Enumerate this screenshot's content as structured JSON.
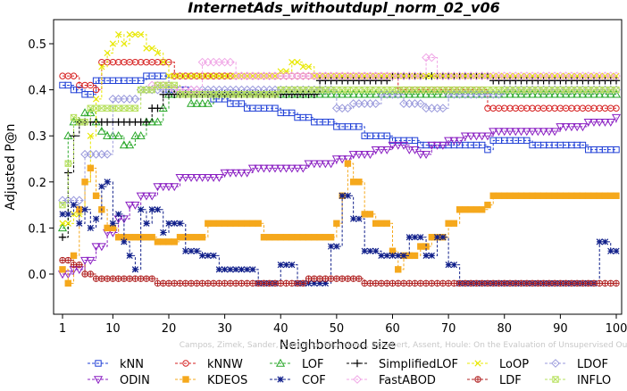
{
  "chart_data": {
    "type": "line",
    "title": "InternetAds_withoutdupl_norm_02_v06",
    "xlabel": "Neighborhood size",
    "ylabel": "Adjusted P@n",
    "xlim": [
      1,
      100
    ],
    "ylim": [
      -0.04,
      0.55
    ],
    "x_ticks": [
      1,
      10,
      20,
      30,
      40,
      50,
      60,
      70,
      80,
      90,
      100
    ],
    "y_ticks": [
      0.0,
      0.1,
      0.2,
      0.3,
      0.4,
      0.5
    ],
    "x_tick_labels": [
      "1",
      "10",
      "20",
      "30",
      "40",
      "50",
      "60",
      "70",
      "80",
      "90",
      "100"
    ],
    "y_tick_labels": [
      "0.0",
      "0.1",
      "0.2",
      "0.3",
      "0.4",
      "0.5"
    ],
    "grid": false,
    "legend_position": "bottom",
    "watermark": "Campos, Zimek, Sander, Campello, Micenková, Schubert, Assent, Houle: On the Evaluation of Unsupervised Outlier Detection. DAMI, 2015.",
    "series": [
      {
        "name": "kNN",
        "color": "#1f3fd6",
        "marker": "square",
        "points": [
          [
            1,
            0.41
          ],
          [
            3,
            0.4
          ],
          [
            5,
            0.39
          ],
          [
            7,
            0.42
          ],
          [
            10,
            0.42
          ],
          [
            13,
            0.42
          ],
          [
            16,
            0.43
          ],
          [
            19,
            0.43
          ],
          [
            20,
            0.4
          ],
          [
            24,
            0.39
          ],
          [
            28,
            0.38
          ],
          [
            31,
            0.37
          ],
          [
            34,
            0.36
          ],
          [
            37,
            0.36
          ],
          [
            40,
            0.35
          ],
          [
            43,
            0.34
          ],
          [
            46,
            0.33
          ],
          [
            50,
            0.32
          ],
          [
            55,
            0.3
          ],
          [
            60,
            0.29
          ],
          [
            65,
            0.28
          ],
          [
            70,
            0.28
          ],
          [
            77,
            0.27
          ],
          [
            78,
            0.29
          ],
          [
            85,
            0.28
          ],
          [
            90,
            0.28
          ],
          [
            95,
            0.27
          ],
          [
            100,
            0.27
          ]
        ]
      },
      {
        "name": "kNNW",
        "color": "#d62020",
        "marker": "circle",
        "points": [
          [
            1,
            0.43
          ],
          [
            4,
            0.41
          ],
          [
            7,
            0.4
          ],
          [
            8,
            0.46
          ],
          [
            20,
            0.46
          ],
          [
            21,
            0.43
          ],
          [
            40,
            0.43
          ],
          [
            55,
            0.43
          ],
          [
            60,
            0.43
          ],
          [
            61,
            0.4
          ],
          [
            70,
            0.4
          ],
          [
            76,
            0.4
          ],
          [
            77,
            0.36
          ],
          [
            90,
            0.36
          ],
          [
            100,
            0.36
          ]
        ]
      },
      {
        "name": "LOF",
        "color": "#2aa82a",
        "marker": "triangle",
        "points": [
          [
            1,
            0.1
          ],
          [
            2,
            0.3
          ],
          [
            3,
            0.33
          ],
          [
            5,
            0.35
          ],
          [
            7,
            0.33
          ],
          [
            8,
            0.31
          ],
          [
            9,
            0.3
          ],
          [
            10,
            0.3
          ],
          [
            11,
            0.3
          ],
          [
            12,
            0.28
          ],
          [
            13,
            0.28
          ],
          [
            14,
            0.3
          ],
          [
            15,
            0.3
          ],
          [
            16,
            0.33
          ],
          [
            17,
            0.33
          ],
          [
            18,
            0.33
          ],
          [
            19,
            0.36
          ],
          [
            20,
            0.39
          ],
          [
            22,
            0.39
          ],
          [
            24,
            0.37
          ],
          [
            26,
            0.37
          ],
          [
            28,
            0.39
          ],
          [
            40,
            0.39
          ],
          [
            50,
            0.39
          ],
          [
            60,
            0.39
          ],
          [
            70,
            0.39
          ],
          [
            80,
            0.39
          ],
          [
            90,
            0.39
          ],
          [
            100,
            0.39
          ]
        ]
      },
      {
        "name": "SimplifiedLOF",
        "color": "#000000",
        "marker": "plus",
        "points": [
          [
            1,
            0.08
          ],
          [
            2,
            0.22
          ],
          [
            3,
            0.3
          ],
          [
            4,
            0.33
          ],
          [
            10,
            0.33
          ],
          [
            16,
            0.33
          ],
          [
            17,
            0.36
          ],
          [
            19,
            0.39
          ],
          [
            25,
            0.39
          ],
          [
            35,
            0.39
          ],
          [
            46,
            0.39
          ],
          [
            47,
            0.42
          ],
          [
            60,
            0.43
          ],
          [
            77,
            0.43
          ],
          [
            78,
            0.42
          ],
          [
            90,
            0.42
          ],
          [
            100,
            0.42
          ]
        ]
      },
      {
        "name": "LoOP",
        "color": "#e8e800",
        "marker": "x",
        "points": [
          [
            1,
            0.11
          ],
          [
            3,
            0.13
          ],
          [
            5,
            0.2
          ],
          [
            6,
            0.3
          ],
          [
            7,
            0.38
          ],
          [
            8,
            0.45
          ],
          [
            9,
            0.48
          ],
          [
            10,
            0.5
          ],
          [
            11,
            0.52
          ],
          [
            12,
            0.5
          ],
          [
            13,
            0.52
          ],
          [
            16,
            0.49
          ],
          [
            18,
            0.48
          ],
          [
            19,
            0.46
          ],
          [
            20,
            0.43
          ],
          [
            40,
            0.44
          ],
          [
            42,
            0.46
          ],
          [
            44,
            0.45
          ],
          [
            46,
            0.43
          ],
          [
            60,
            0.43
          ],
          [
            70,
            0.43
          ],
          [
            80,
            0.43
          ],
          [
            100,
            0.43
          ]
        ]
      },
      {
        "name": "LDOF",
        "color": "#9a9adc",
        "marker": "diamond",
        "points": [
          [
            1,
            0.16
          ],
          [
            5,
            0.26
          ],
          [
            10,
            0.38
          ],
          [
            15,
            0.4
          ],
          [
            20,
            0.4
          ],
          [
            30,
            0.4
          ],
          [
            45,
            0.4
          ],
          [
            50,
            0.36
          ],
          [
            53,
            0.37
          ],
          [
            58,
            0.39
          ],
          [
            62,
            0.37
          ],
          [
            66,
            0.36
          ],
          [
            70,
            0.39
          ],
          [
            80,
            0.4
          ],
          [
            90,
            0.4
          ],
          [
            100,
            0.4
          ]
        ]
      },
      {
        "name": "ODIN",
        "color": "#8a1fc2",
        "marker": "triangle-down",
        "points": [
          [
            1,
            0.0
          ],
          [
            3,
            0.01
          ],
          [
            5,
            0.03
          ],
          [
            7,
            0.06
          ],
          [
            9,
            0.09
          ],
          [
            11,
            0.12
          ],
          [
            13,
            0.15
          ],
          [
            15,
            0.17
          ],
          [
            18,
            0.19
          ],
          [
            22,
            0.21
          ],
          [
            26,
            0.21
          ],
          [
            30,
            0.22
          ],
          [
            35,
            0.23
          ],
          [
            40,
            0.23
          ],
          [
            45,
            0.24
          ],
          [
            50,
            0.25
          ],
          [
            53,
            0.26
          ],
          [
            57,
            0.27
          ],
          [
            60,
            0.28
          ],
          [
            63,
            0.27
          ],
          [
            65,
            0.26
          ],
          [
            67,
            0.28
          ],
          [
            70,
            0.29
          ],
          [
            73,
            0.3
          ],
          [
            78,
            0.31
          ],
          [
            85,
            0.31
          ],
          [
            90,
            0.32
          ],
          [
            95,
            0.33
          ],
          [
            100,
            0.34
          ]
        ]
      },
      {
        "name": "KDEOS",
        "color": "#f5a81c",
        "marker": "square-filled",
        "points": [
          [
            1,
            0.01
          ],
          [
            2,
            -0.02
          ],
          [
            3,
            0.04
          ],
          [
            4,
            0.14
          ],
          [
            5,
            0.2
          ],
          [
            6,
            0.23
          ],
          [
            7,
            0.17
          ],
          [
            8,
            0.14
          ],
          [
            9,
            0.1
          ],
          [
            10,
            0.1
          ],
          [
            11,
            0.08
          ],
          [
            16,
            0.08
          ],
          [
            18,
            0.07
          ],
          [
            22,
            0.08
          ],
          [
            26,
            0.08
          ],
          [
            27,
            0.11
          ],
          [
            32,
            0.11
          ],
          [
            37,
            0.08
          ],
          [
            45,
            0.08
          ],
          [
            49,
            0.08
          ],
          [
            50,
            0.11
          ],
          [
            51,
            0.17
          ],
          [
            52,
            0.24
          ],
          [
            53,
            0.2
          ],
          [
            55,
            0.13
          ],
          [
            57,
            0.11
          ],
          [
            60,
            0.05
          ],
          [
            61,
            0.01
          ],
          [
            62,
            0.04
          ],
          [
            65,
            0.06
          ],
          [
            67,
            0.08
          ],
          [
            70,
            0.11
          ],
          [
            72,
            0.14
          ],
          [
            75,
            0.14
          ],
          [
            77,
            0.15
          ],
          [
            78,
            0.17
          ],
          [
            80,
            0.17
          ],
          [
            90,
            0.17
          ],
          [
            100,
            0.17
          ]
        ]
      },
      {
        "name": "COF",
        "color": "#101f8a",
        "marker": "star",
        "points": [
          [
            1,
            0.13
          ],
          [
            3,
            0.15
          ],
          [
            4,
            0.11
          ],
          [
            5,
            0.14
          ],
          [
            6,
            0.1
          ],
          [
            7,
            0.12
          ],
          [
            8,
            0.19
          ],
          [
            9,
            0.2
          ],
          [
            10,
            0.11
          ],
          [
            11,
            0.13
          ],
          [
            12,
            0.07
          ],
          [
            13,
            0.04
          ],
          [
            14,
            0.01
          ],
          [
            15,
            0.14
          ],
          [
            16,
            0.11
          ],
          [
            17,
            0.14
          ],
          [
            18,
            0.14
          ],
          [
            19,
            0.09
          ],
          [
            20,
            0.11
          ],
          [
            23,
            0.05
          ],
          [
            26,
            0.04
          ],
          [
            29,
            0.01
          ],
          [
            32,
            0.01
          ],
          [
            36,
            -0.02
          ],
          [
            40,
            0.02
          ],
          [
            43,
            -0.02
          ],
          [
            46,
            -0.02
          ],
          [
            49,
            0.06
          ],
          [
            51,
            0.17
          ],
          [
            53,
            0.12
          ],
          [
            55,
            0.05
          ],
          [
            58,
            0.04
          ],
          [
            60,
            0.04
          ],
          [
            63,
            0.08
          ],
          [
            66,
            0.04
          ],
          [
            68,
            0.08
          ],
          [
            70,
            0.02
          ],
          [
            72,
            -0.02
          ],
          [
            80,
            -0.02
          ],
          [
            90,
            -0.02
          ],
          [
            95,
            -0.02
          ],
          [
            97,
            0.07
          ],
          [
            99,
            0.05
          ],
          [
            100,
            0.05
          ]
        ]
      },
      {
        "name": "FastABOD",
        "color": "#f0a6e6",
        "marker": "diamond",
        "points": [
          [
            17,
            0.41
          ],
          [
            21,
            0.4
          ],
          [
            26,
            0.46
          ],
          [
            29,
            0.46
          ],
          [
            32,
            0.43
          ],
          [
            40,
            0.43
          ],
          [
            58,
            0.43
          ],
          [
            64,
            0.43
          ],
          [
            66,
            0.47
          ],
          [
            68,
            0.43
          ],
          [
            80,
            0.43
          ],
          [
            100,
            0.43
          ]
        ]
      },
      {
        "name": "LDF",
        "color": "#b02020",
        "marker": "circle-plus",
        "points": [
          [
            1,
            0.03
          ],
          [
            3,
            0.02
          ],
          [
            5,
            0.0
          ],
          [
            7,
            -0.01
          ],
          [
            9,
            -0.01
          ],
          [
            11,
            -0.01
          ],
          [
            14,
            -0.01
          ],
          [
            18,
            -0.02
          ],
          [
            25,
            -0.02
          ],
          [
            35,
            -0.02
          ],
          [
            45,
            -0.01
          ],
          [
            50,
            -0.01
          ],
          [
            53,
            -0.01
          ],
          [
            55,
            -0.02
          ],
          [
            65,
            -0.02
          ],
          [
            80,
            -0.02
          ],
          [
            90,
            -0.02
          ],
          [
            100,
            -0.02
          ]
        ]
      },
      {
        "name": "INFLO",
        "color": "#b6e05c",
        "marker": "star-box",
        "points": [
          [
            1,
            0.15
          ],
          [
            2,
            0.24
          ],
          [
            3,
            0.34
          ],
          [
            4,
            0.33
          ],
          [
            6,
            0.36
          ],
          [
            12,
            0.36
          ],
          [
            15,
            0.4
          ],
          [
            18,
            0.41
          ],
          [
            22,
            0.39
          ],
          [
            30,
            0.39
          ],
          [
            40,
            0.4
          ],
          [
            50,
            0.4
          ],
          [
            60,
            0.4
          ],
          [
            70,
            0.4
          ],
          [
            80,
            0.4
          ],
          [
            90,
            0.4
          ],
          [
            100,
            0.4
          ]
        ]
      }
    ]
  }
}
